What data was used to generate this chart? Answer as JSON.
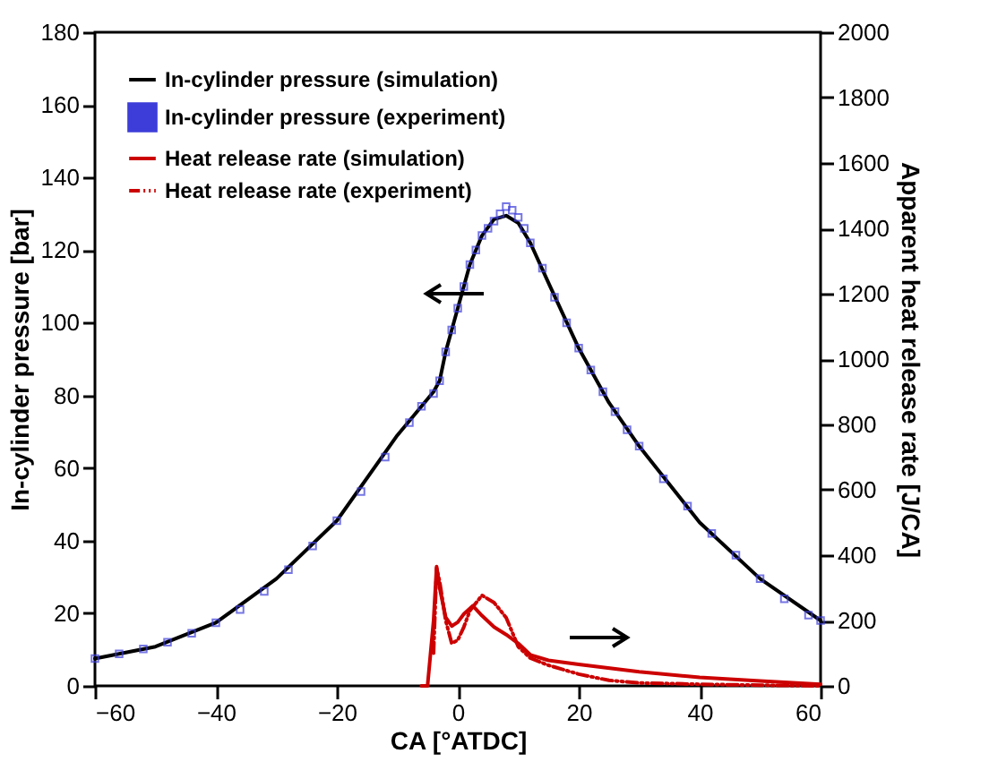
{
  "chart_data": {
    "type": "line",
    "xlabel": "CA [°ATDC]",
    "ylabel": "In-cylinder pressure [bar]",
    "y2label": "Apparent heat release rate [J/CA]",
    "xlim": [
      -60,
      60
    ],
    "xticks": [
      -60,
      -40,
      -20,
      0,
      20,
      40,
      60
    ],
    "ylim": [
      0,
      180
    ],
    "yticks": [
      0,
      20,
      40,
      60,
      80,
      100,
      120,
      140,
      160,
      180
    ],
    "y2lim": [
      0,
      2000
    ],
    "y2ticks": [
      0,
      200,
      400,
      600,
      800,
      1000,
      1200,
      1400,
      1600,
      1800,
      2000
    ],
    "legend": "top left",
    "grid": false,
    "series": [
      {
        "name": "In-cylinder pressure (simulation)",
        "color": "#000000",
        "line_style": "solid",
        "x": [
          -60,
          -50,
          -40,
          -30,
          -20,
          -10,
          -6,
          -4,
          -3,
          -2,
          0,
          2,
          4,
          6,
          8,
          10,
          12,
          15,
          20,
          25,
          30,
          40,
          50,
          60
        ],
        "values": [
          7.5,
          10.8,
          17.4,
          29.5,
          45.5,
          69,
          77,
          81,
          84,
          92,
          104,
          116,
          124,
          128.5,
          129.5,
          127.5,
          122,
          111,
          93,
          78,
          66,
          45,
          29.5,
          18
        ]
      },
      {
        "name": "In-cylinder pressure (experiment)",
        "type": "scatter",
        "marker": "square",
        "color": "#3d3dd9",
        "x": [
          -60,
          -56,
          -52,
          -48,
          -44,
          -40,
          -36,
          -32,
          -28,
          -24,
          -20,
          -16,
          -12,
          -8,
          -6,
          -4,
          -3,
          -2,
          -1,
          0,
          1,
          2,
          3,
          4,
          5,
          6,
          7,
          8,
          9,
          10,
          11,
          12,
          14,
          16,
          18,
          20,
          22,
          24,
          26,
          28,
          30,
          34,
          38,
          42,
          46,
          50,
          54,
          58,
          60
        ],
        "values": [
          7.5,
          8.8,
          10.2,
          12,
          14.5,
          17.4,
          21,
          26,
          32,
          38.5,
          45.5,
          53.5,
          63,
          72.5,
          77,
          80.5,
          84,
          92,
          98,
          104,
          110,
          116,
          120,
          124,
          126,
          128,
          130,
          132,
          131,
          129,
          126,
          122,
          115,
          107,
          100,
          93,
          87,
          81,
          75.5,
          70.5,
          66,
          57,
          49.5,
          42,
          36,
          29.5,
          24,
          19.5,
          18
        ]
      },
      {
        "name": "Heat release rate (simulation)",
        "axis": "y2",
        "color": "#cc0000",
        "line_style": "solid",
        "x": [
          -6,
          -5,
          -4,
          -3.5,
          -3,
          -2,
          -1,
          0,
          1,
          2.5,
          4,
          6,
          8,
          10,
          12,
          15,
          20,
          30,
          40,
          50,
          60
        ],
        "values": [
          0,
          0,
          200,
          365,
          300,
          210,
          183,
          195,
          220,
          245,
          215,
          180,
          157,
          130,
          95,
          78,
          66,
          43,
          26,
          15,
          5
        ]
      },
      {
        "name": "Heat release rate (experiment)",
        "axis": "y2",
        "color": "#cc0000",
        "line_style": "dashed",
        "x": [
          -4,
          -3.5,
          -3,
          -2,
          -1,
          0,
          1,
          2,
          4,
          6,
          8,
          10,
          12,
          15,
          20,
          25,
          30,
          40,
          50,
          60
        ],
        "values": [
          100,
          360,
          320,
          200,
          130,
          140,
          180,
          230,
          277,
          255,
          209,
          120,
          85,
          63,
          36,
          17,
          9,
          5,
          2,
          0
        ]
      }
    ]
  }
}
